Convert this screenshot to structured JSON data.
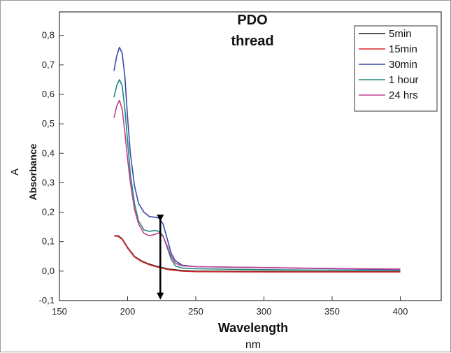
{
  "chart_data": {
    "type": "line",
    "title_lines": [
      "PDO",
      "thread"
    ],
    "xlabel": "Wavelength",
    "xunit": "nm",
    "ylabel": "Absorbance",
    "ysymbol": "A",
    "xlim": [
      150,
      430
    ],
    "ylim": [
      -0.1,
      0.88
    ],
    "xticks": [
      150,
      200,
      250,
      300,
      350,
      400
    ],
    "yticks": [
      -0.1,
      0.0,
      0.1,
      0.2,
      0.3,
      0.4,
      0.5,
      0.6,
      0.7,
      0.8
    ],
    "ytick_labels": [
      "-0,1",
      "0,0",
      "0,1",
      "0,2",
      "0,3",
      "0,4",
      "0,5",
      "0,6",
      "0,7",
      "0,8"
    ],
    "grid": false,
    "legend_position": "top-right",
    "series": [
      {
        "name": "5min",
        "color": "#1a1a1a",
        "x": [
          190,
          193,
          196,
          200,
          205,
          210,
          215,
          220,
          225,
          230,
          240,
          250,
          300,
          350,
          400
        ],
        "y": [
          0.12,
          0.12,
          0.11,
          0.08,
          0.05,
          0.035,
          0.025,
          0.018,
          0.012,
          0.007,
          0.002,
          0.0,
          -0.001,
          -0.002,
          -0.002
        ]
      },
      {
        "name": "15min",
        "color": "#d62728",
        "x": [
          190,
          193,
          196,
          200,
          205,
          210,
          215,
          220,
          225,
          230,
          240,
          250,
          300,
          350,
          400
        ],
        "y": [
          0.12,
          0.118,
          0.108,
          0.078,
          0.048,
          0.033,
          0.023,
          0.016,
          0.01,
          0.005,
          0.0,
          -0.002,
          -0.003,
          -0.003,
          -0.003
        ]
      },
      {
        "name": "30min",
        "color": "#3949ab",
        "x": [
          190,
          192,
          194,
          196,
          198,
          200,
          202,
          205,
          208,
          212,
          216,
          220,
          223,
          226,
          229,
          232,
          235,
          240,
          250,
          300,
          350,
          400
        ],
        "y": [
          0.68,
          0.73,
          0.76,
          0.74,
          0.66,
          0.52,
          0.4,
          0.29,
          0.23,
          0.2,
          0.185,
          0.183,
          0.18,
          0.16,
          0.11,
          0.06,
          0.035,
          0.02,
          0.015,
          0.012,
          0.008,
          0.005
        ]
      },
      {
        "name": "1 hour",
        "color": "#1f8a7a",
        "x": [
          190,
          192,
          194,
          196,
          198,
          200,
          202,
          205,
          208,
          212,
          216,
          220,
          223,
          226,
          229,
          232,
          235,
          240,
          250,
          300,
          350,
          400
        ],
        "y": [
          0.59,
          0.63,
          0.65,
          0.63,
          0.55,
          0.44,
          0.33,
          0.23,
          0.17,
          0.14,
          0.135,
          0.138,
          0.135,
          0.12,
          0.08,
          0.04,
          0.018,
          0.01,
          0.008,
          0.005,
          0.003,
          0.002
        ]
      },
      {
        "name": "24 hrs",
        "color": "#c2408f",
        "x": [
          190,
          192,
          194,
          196,
          198,
          200,
          202,
          205,
          208,
          212,
          216,
          220,
          223,
          226,
          229,
          232,
          235,
          240,
          250,
          300,
          350,
          400
        ],
        "y": [
          0.52,
          0.56,
          0.58,
          0.55,
          0.47,
          0.38,
          0.3,
          0.21,
          0.16,
          0.128,
          0.12,
          0.125,
          0.13,
          0.118,
          0.085,
          0.05,
          0.027,
          0.018,
          0.015,
          0.012,
          0.009,
          0.007
        ]
      }
    ],
    "annotation": {
      "type": "double-arrow",
      "x": 224,
      "y_from": 0.18,
      "y_to": -0.085,
      "color": "#000000"
    }
  }
}
